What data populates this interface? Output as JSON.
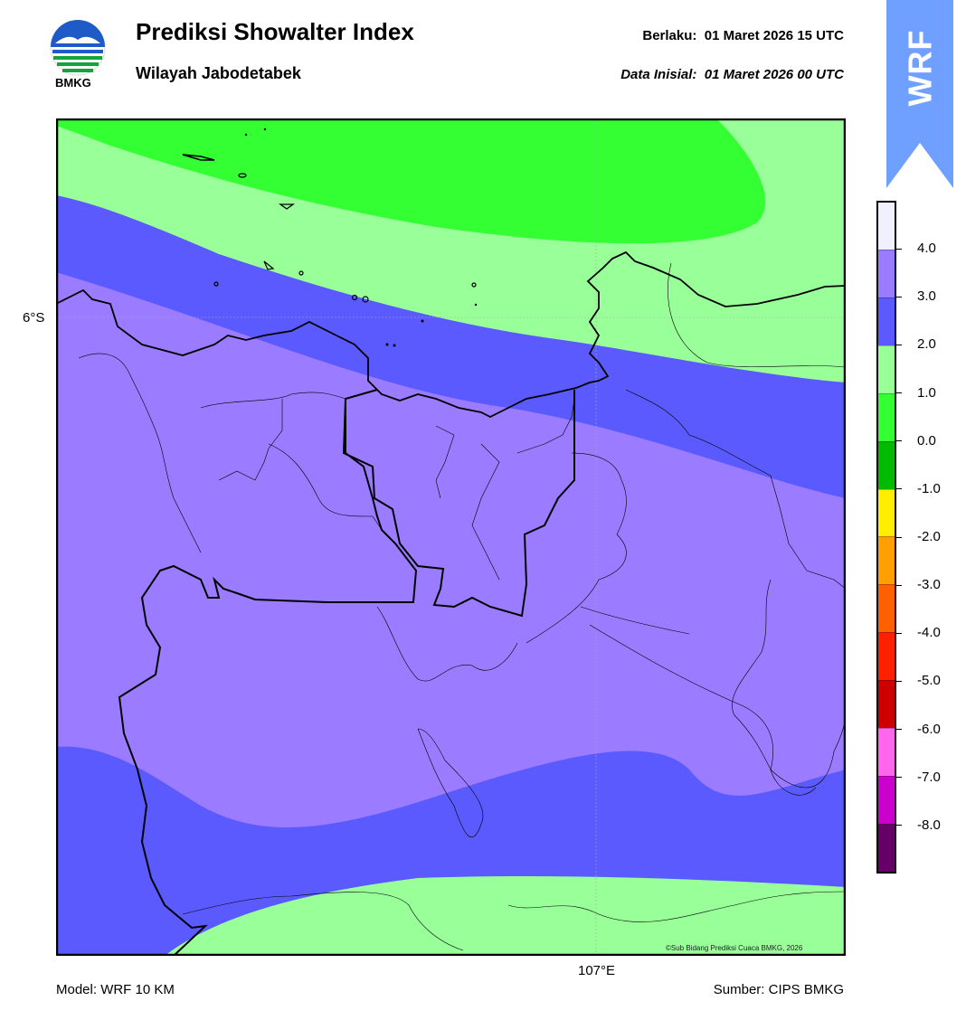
{
  "header": {
    "title": "Prediksi Showalter Index",
    "subtitle": "Wilayah Jabodetabek",
    "valid_label": "Berlaku:",
    "valid_value": "01 Maret 2026 15 UTC",
    "init_label": "Data Inisial:",
    "init_value": "01 Maret 2026 00 UTC"
  },
  "logo": {
    "text": "BMKG",
    "icon": "bmkg-logo-icon"
  },
  "badge": {
    "text": "WRF",
    "color": "#6fa0ff"
  },
  "map": {
    "lat_label": "6°S",
    "lon_label": "107°E",
    "copyright": "©Sub Bidang Prediksi Cuaca BMKG, 2026"
  },
  "colorbar": {
    "labels": [
      "4.0",
      "3.0",
      "2.0",
      "1.0",
      "0.0",
      "-1.0",
      "-2.0",
      "-3.0",
      "-4.0",
      "-5.0",
      "-6.0",
      "-7.0",
      "-8.0"
    ],
    "colors": [
      "#f0f0ff",
      "#9b7bff",
      "#5a5aff",
      "#99ff99",
      "#33ff33",
      "#00bb00",
      "#ffee00",
      "#ffa000",
      "#ff6000",
      "#ff2000",
      "#cc0000",
      "#ff66ee",
      "#cc00cc",
      "#660066"
    ]
  },
  "footer": {
    "model": "Model: WRF 10 KM",
    "source": "Sumber: CIPS BMKG"
  }
}
